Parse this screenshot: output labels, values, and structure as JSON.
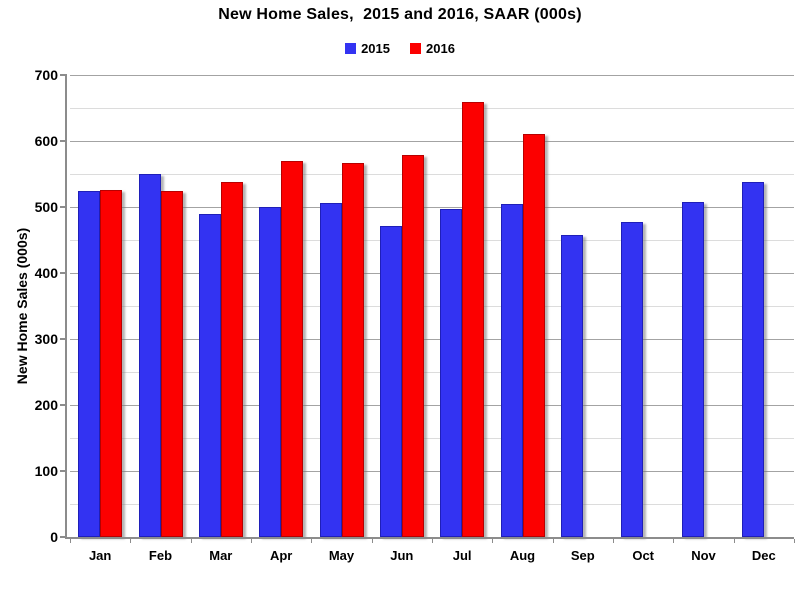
{
  "title": "New Home Sales,  2015 and 2016, SAAR (000s)",
  "chart_data": {
    "type": "bar",
    "title": "New Home Sales,  2015 and 2016, SAAR (000s)",
    "xlabel": "",
    "ylabel": "New Home Sales (000s)",
    "categories": [
      "Jan",
      "Feb",
      "Mar",
      "Apr",
      "May",
      "Jun",
      "Jul",
      "Aug",
      "Sep",
      "Oct",
      "Nov",
      "Dec"
    ],
    "series": [
      {
        "name": "2015",
        "color": "#3333F2",
        "edge_color": "#1f1fb8",
        "values": [
          524,
          550,
          489,
          500,
          506,
          471,
          497,
          504,
          457,
          477,
          508,
          538
        ]
      },
      {
        "name": "2016",
        "color": "#FC0000",
        "edge_color": "#b80000",
        "values": [
          526,
          524,
          538,
          570,
          566,
          579,
          659,
          610,
          null,
          null,
          null,
          null
        ]
      }
    ],
    "ylim": [
      0,
      700
    ],
    "ytick_major": 100,
    "ytick_minor": 50,
    "grid": true,
    "legend_position": "top-center",
    "colors": {
      "grid_major": "#a3a3a3",
      "grid_minor": "#dcdcdc",
      "axis": "#8c8c8c",
      "text": "#000000"
    }
  }
}
